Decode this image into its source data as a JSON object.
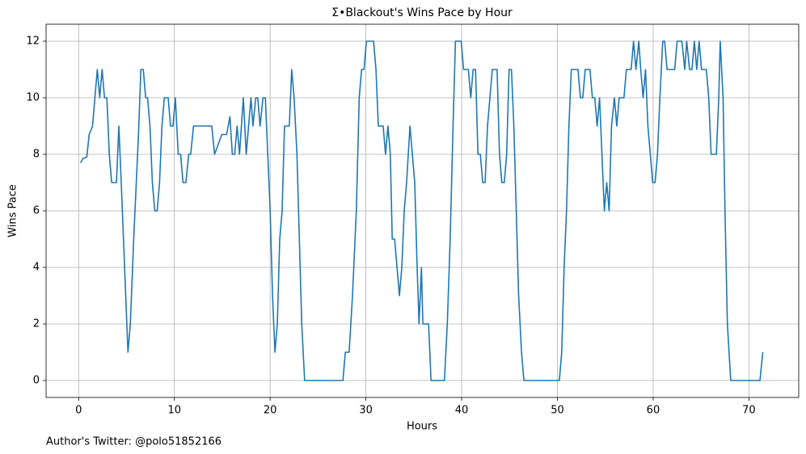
{
  "chart_data": {
    "type": "line",
    "title": "Σ•Blackout's Wins Pace by Hour",
    "x_label": "Hours",
    "y_label": "Wins Pace",
    "annotation": "Author's Twitter: @polo51852166",
    "xlim": [
      -3.4,
      75.2
    ],
    "ylim": [
      -0.6,
      12.6
    ],
    "xticks": [
      0,
      10,
      20,
      30,
      40,
      50,
      60,
      70
    ],
    "yticks": [
      0,
      2,
      4,
      6,
      8,
      10,
      12
    ],
    "grid": true,
    "series": [
      {
        "color": "#1f77b4",
        "x": [
          0.2,
          0.45,
          0.85,
          1.1,
          1.45,
          1.95,
          2.2,
          2.45,
          2.7,
          2.95,
          3.2,
          3.45,
          3.95,
          4.2,
          4.45,
          5.15,
          5.4,
          5.75,
          6.25,
          6.5,
          6.75,
          7.0,
          7.2,
          7.45,
          7.7,
          7.95,
          8.2,
          8.45,
          8.7,
          8.95,
          9.35,
          9.6,
          9.85,
          10.1,
          10.4,
          10.65,
          10.9,
          11.2,
          11.5,
          11.7,
          12.0,
          13.9,
          14.2,
          14.95,
          15.45,
          15.8,
          16.05,
          16.3,
          16.55,
          16.8,
          17.2,
          17.5,
          18.0,
          18.2,
          18.5,
          18.7,
          18.95,
          19.25,
          19.5,
          20.0,
          20.25,
          20.5,
          20.75,
          21.0,
          21.25,
          21.5,
          22.0,
          22.25,
          22.5,
          22.8,
          23.3,
          23.6,
          27.6,
          27.85,
          28.25,
          28.6,
          29.0,
          29.3,
          29.55,
          29.8,
          30.05,
          30.8,
          31.05,
          31.3,
          31.8,
          32.05,
          32.3,
          32.55,
          32.75,
          33.0,
          33.25,
          33.5,
          33.75,
          34.0,
          34.25,
          34.6,
          34.85,
          35.1,
          35.35,
          35.55,
          35.8,
          35.95,
          36.55,
          36.8,
          38.2,
          38.5,
          38.8,
          39.1,
          39.35,
          39.95,
          40.2,
          40.7,
          40.95,
          41.2,
          41.45,
          41.7,
          41.95,
          42.2,
          42.45,
          42.7,
          43.2,
          43.7,
          43.95,
          44.2,
          44.45,
          44.7,
          44.95,
          45.2,
          45.45,
          45.95,
          46.25,
          46.5,
          50.2,
          50.45,
          50.7,
          50.95,
          51.2,
          51.45,
          52.15,
          52.4,
          52.65,
          52.9,
          53.4,
          53.65,
          53.9,
          54.15,
          54.4,
          54.65,
          54.9,
          55.15,
          55.4,
          55.65,
          55.95,
          56.2,
          56.45,
          56.95,
          57.2,
          57.7,
          57.95,
          58.2,
          58.5,
          58.7,
          58.95,
          59.2,
          59.45,
          59.95,
          60.2,
          60.45,
          60.7,
          61.0,
          61.2,
          61.45,
          62.25,
          62.5,
          63.0,
          63.3,
          63.5,
          63.8,
          64.05,
          64.3,
          64.55,
          64.8,
          65.05,
          65.55,
          65.8,
          66.05,
          66.6,
          66.85,
          67.0,
          67.3,
          67.5,
          67.75,
          68.1,
          71.15,
          71.45
        ],
        "values": [
          7.7,
          7.85,
          7.9,
          8.7,
          9,
          11,
          10,
          11,
          10,
          10,
          8,
          7,
          7,
          9,
          7,
          1,
          2,
          5,
          8.7,
          11,
          11,
          10,
          10,
          9,
          7,
          6,
          6,
          7,
          9,
          10,
          10,
          9,
          9,
          10,
          8,
          8,
          7,
          7,
          8,
          8,
          9,
          9,
          8,
          8.7,
          8.7,
          9.33,
          8,
          8,
          9,
          8,
          10,
          8,
          10,
          9,
          10,
          10,
          9,
          10,
          10,
          6,
          3,
          1,
          2,
          5,
          6,
          9,
          9,
          11,
          10,
          8,
          2,
          0,
          0,
          1,
          1,
          3,
          6,
          10,
          11,
          11,
          12,
          12,
          11,
          9,
          9,
          8,
          9,
          8,
          5,
          5,
          4,
          3,
          4,
          6,
          7,
          9,
          8,
          7,
          4,
          2,
          4,
          2,
          2,
          0,
          0,
          2,
          5,
          9,
          12,
          12,
          11,
          11,
          10,
          11,
          11,
          8,
          8,
          7,
          7,
          9,
          11,
          11,
          8,
          7,
          7,
          8,
          11,
          11,
          9,
          3,
          1,
          0,
          0,
          1,
          4,
          6,
          9,
          11,
          11,
          10,
          10,
          11,
          11,
          10,
          10,
          9,
          10,
          8,
          6,
          7,
          6,
          9,
          10,
          9,
          10,
          10,
          11,
          11,
          12,
          11,
          12,
          11,
          10,
          11,
          9,
          7,
          7,
          8,
          10,
          12,
          12,
          11,
          11,
          12,
          12,
          11,
          12,
          11,
          11,
          12,
          11,
          12,
          11,
          11,
          10,
          8,
          8,
          10,
          12,
          10,
          6,
          2,
          0,
          0,
          1
        ]
      }
    ]
  }
}
